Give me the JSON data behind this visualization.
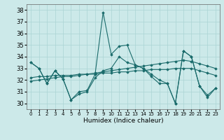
{
  "xlabel": "Humidex (Indice chaleur)",
  "xlim": [
    -0.5,
    23.5
  ],
  "ylim": [
    29.5,
    38.5
  ],
  "yticks": [
    30,
    31,
    32,
    33,
    34,
    35,
    36,
    37,
    38
  ],
  "xticks": [
    0,
    1,
    2,
    3,
    4,
    5,
    6,
    7,
    8,
    9,
    10,
    11,
    12,
    13,
    14,
    15,
    16,
    17,
    18,
    19,
    20,
    21,
    22,
    23
  ],
  "background_color": "#cce9e9",
  "grid_color": "#aad4d4",
  "line_color": "#1a6b6b",
  "series1_y": [
    33.5,
    33.0,
    31.7,
    32.8,
    32.1,
    30.3,
    31.0,
    31.1,
    32.5,
    37.8,
    34.2,
    34.9,
    35.0,
    33.3,
    33.0,
    32.5,
    32.0,
    31.7,
    30.0,
    34.5,
    34.0,
    31.5,
    30.7,
    31.3
  ],
  "series2_y": [
    33.5,
    33.0,
    31.7,
    32.8,
    32.1,
    30.3,
    30.8,
    31.0,
    32.2,
    32.8,
    33.0,
    34.0,
    33.5,
    33.3,
    33.0,
    32.3,
    31.7,
    31.7,
    30.0,
    34.5,
    34.0,
    31.5,
    30.5,
    31.3
  ],
  "series3_y": [
    31.9,
    32.0,
    32.1,
    32.2,
    32.3,
    32.3,
    32.4,
    32.5,
    32.6,
    32.7,
    32.8,
    32.9,
    33.0,
    33.1,
    33.2,
    33.3,
    33.4,
    33.5,
    33.6,
    33.7,
    33.6,
    33.4,
    33.2,
    33.0
  ],
  "series4_y": [
    32.2,
    32.3,
    32.3,
    32.4,
    32.4,
    32.4,
    32.5,
    32.5,
    32.5,
    32.6,
    32.6,
    32.7,
    32.7,
    32.8,
    32.8,
    32.9,
    32.9,
    32.9,
    33.0,
    33.0,
    33.0,
    32.8,
    32.6,
    32.4
  ]
}
